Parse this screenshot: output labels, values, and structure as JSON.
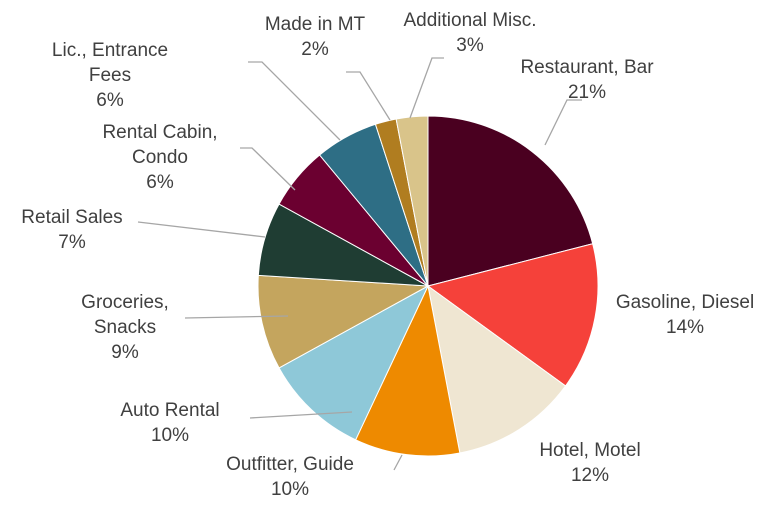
{
  "chart_data": {
    "type": "pie",
    "categories": [
      "Restaurant, Bar",
      "Gasoline, Diesel",
      "Hotel, Motel",
      "Outfitter, Guide",
      "Auto Rental",
      "Groceries, Snacks",
      "Retail Sales",
      "Rental Cabin, Condo",
      "Lic., Entrance Fees",
      "Made in MT",
      "Additional Misc."
    ],
    "values": [
      21,
      14,
      12,
      10,
      10,
      9,
      7,
      6,
      6,
      2,
      3
    ],
    "value_labels": [
      "21%",
      "14%",
      "12%",
      "10%",
      "10%",
      "9%",
      "7%",
      "6%",
      "6%",
      "2%",
      "3%"
    ],
    "colors": [
      "#4a0020",
      "#f5413a",
      "#efe6d2",
      "#ee8a00",
      "#8ec8d8",
      "#c4a55e",
      "#1f3d33",
      "#6b0030",
      "#2e6e85",
      "#b07d20",
      "#d9c48a"
    ]
  }
}
